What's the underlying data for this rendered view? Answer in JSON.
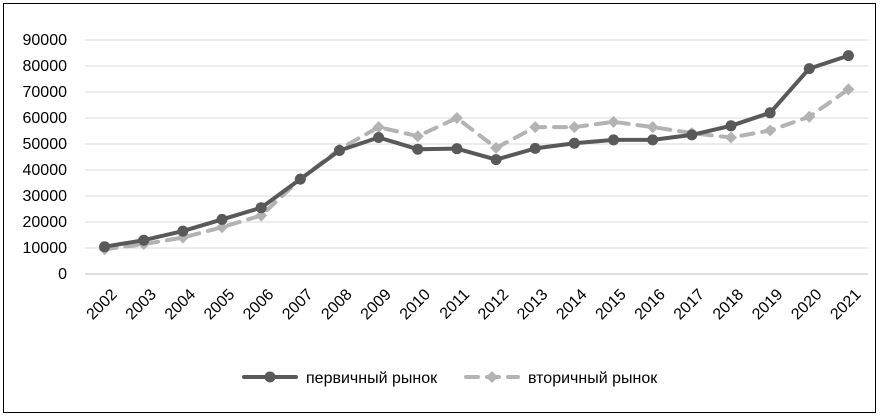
{
  "chart_data": {
    "type": "line",
    "title": "",
    "xlabel": "",
    "ylabel": "",
    "categories": [
      "2002",
      "2003",
      "2004",
      "2005",
      "2006",
      "2007",
      "2008",
      "2009",
      "2010",
      "2011",
      "2012",
      "2013",
      "2014",
      "2015",
      "2016",
      "2017",
      "2018",
      "2019",
      "2020",
      "2021"
    ],
    "ylim": [
      0,
      90000
    ],
    "yticks": [
      "0",
      "10000",
      "20000",
      "30000",
      "40000",
      "50000",
      "60000",
      "70000",
      "80000",
      "90000"
    ],
    "grid": "horizontal",
    "legend_position": "bottom",
    "series": [
      {
        "name": "первичный рынок",
        "color": "#595959",
        "style": "solid",
        "marker": "circle",
        "values": [
          10500,
          13000,
          16500,
          21000,
          25500,
          36500,
          47500,
          52500,
          48000,
          48200,
          44000,
          48300,
          50300,
          51600,
          51600,
          53500,
          57000,
          62000,
          79000,
          84000
        ]
      },
      {
        "name": "вторичный рынок",
        "color": "#b3b3b3",
        "style": "dashed",
        "marker": "diamond",
        "values": [
          9500,
          11500,
          14000,
          18000,
          22500,
          36500,
          48000,
          56500,
          53000,
          60000,
          48500,
          56500,
          56500,
          58500,
          56500,
          54200,
          52500,
          55200,
          60500,
          71000
        ]
      }
    ]
  }
}
